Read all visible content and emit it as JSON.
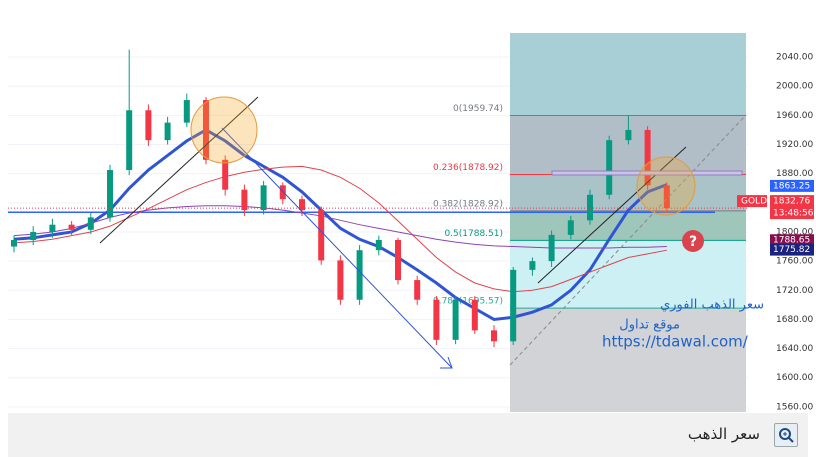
{
  "chart_data": {
    "type": "candlestick",
    "symbol": "GOLD",
    "countdown": "13:48:56",
    "ylim": [
      1553,
      2073
    ],
    "yticks": [
      {
        "value": 1560,
        "label": "1560.00"
      },
      {
        "value": 1600,
        "label": "1600.00"
      },
      {
        "value": 1640,
        "label": "1640.00"
      },
      {
        "value": 1680,
        "label": "1680.00"
      },
      {
        "value": 1720,
        "label": "1720.00"
      },
      {
        "value": 1760,
        "label": "1760.00"
      },
      {
        "value": 1800,
        "label": "1800.00"
      },
      {
        "value": 1840,
        "label": "1840.00"
      },
      {
        "value": 1880,
        "label": "1880.00"
      },
      {
        "value": 1920,
        "label": "1920.00"
      },
      {
        "value": 1960,
        "label": "1960.00"
      },
      {
        "value": 2000,
        "label": "2000.00"
      },
      {
        "value": 2040,
        "label": "2040.00"
      }
    ],
    "grid": true,
    "up_color": "#089981",
    "down_color": "#f23645",
    "open": [
      1780,
      1789,
      1800,
      1810,
      1803,
      1820,
      1885,
      1967,
      1926,
      1950,
      1981,
      1899,
      1858,
      1830,
      1864,
      1845,
      1830,
      1761,
      1707,
      1775,
      1789,
      1734,
      1707,
      1652,
      1707,
      1665,
      1650,
      1748,
      1760,
      1796,
      1816,
      1851,
      1926,
      1940,
      1864
    ],
    "high": [
      1795,
      1808,
      1818,
      1815,
      1826,
      1892,
      2050,
      1975,
      1958,
      1990,
      1985,
      1905,
      1865,
      1870,
      1868,
      1850,
      1835,
      1768,
      1782,
      1795,
      1792,
      1740,
      1712,
      1712,
      1712,
      1672,
      1752,
      1765,
      1802,
      1822,
      1858,
      1932,
      1960,
      1945,
      1868
    ],
    "low": [
      1772,
      1782,
      1792,
      1796,
      1797,
      1814,
      1878,
      1918,
      1920,
      1944,
      1893,
      1850,
      1822,
      1824,
      1838,
      1822,
      1755,
      1700,
      1700,
      1768,
      1728,
      1700,
      1645,
      1646,
      1660,
      1642,
      1645,
      1740,
      1752,
      1790,
      1810,
      1845,
      1920,
      1858,
      1826
    ],
    "close": [
      1789,
      1800,
      1810,
      1803,
      1820,
      1885,
      1967,
      1926,
      1950,
      1981,
      1899,
      1858,
      1830,
      1864,
      1845,
      1830,
      1761,
      1707,
      1775,
      1789,
      1734,
      1707,
      1652,
      1707,
      1665,
      1650,
      1748,
      1760,
      1796,
      1816,
      1851,
      1926,
      1940,
      1864,
      1832.76
    ],
    "moving_averages": [
      {
        "color": "#2f55d4",
        "width": 3,
        "values": [
          1790,
          1792,
          1796,
          1800,
          1812,
          1830,
          1860,
          1885,
          1905,
          1925,
          1940,
          1925,
          1905,
          1890,
          1875,
          1855,
          1830,
          1805,
          1790,
          1780,
          1765,
          1748,
          1730,
          1710,
          1695,
          1680,
          1683,
          1690,
          1700,
          1720,
          1748,
          1790,
          1830,
          1855,
          1865
        ]
      },
      {
        "color": "#e0434f",
        "width": 1,
        "values": [
          1785,
          1787,
          1790,
          1795,
          1800,
          1808,
          1820,
          1832,
          1845,
          1858,
          1868,
          1876,
          1882,
          1886,
          1889,
          1890,
          1885,
          1875,
          1860,
          1840,
          1815,
          1790,
          1765,
          1745,
          1730,
          1722,
          1718,
          1720,
          1725,
          1735,
          1745,
          1755,
          1765,
          1770,
          1775
        ]
      },
      {
        "color": "#8e44ad",
        "width": 1,
        "values": [
          1795,
          1797,
          1800,
          1805,
          1812,
          1820,
          1826,
          1830,
          1833,
          1835,
          1836,
          1836,
          1835,
          1833,
          1830,
          1826,
          1822,
          1816,
          1810,
          1805,
          1800,
          1795,
          1790,
          1786,
          1783,
          1781,
          1780,
          1779,
          1778,
          1778,
          1778,
          1778,
          1779,
          1779,
          1780
        ]
      }
    ],
    "fib_levels": [
      {
        "value": 1959.74,
        "label": "0(1959.74)",
        "color": "#787b86"
      },
      {
        "value": 1878.92,
        "label": "0.236(1878.92)",
        "color": "#f23645"
      },
      {
        "value": 1828.92,
        "label": "0.382(1828.92)",
        "color": "#787b86"
      },
      {
        "value": 1788.51,
        "label": "0.5(1788.51)",
        "color": "#089981"
      },
      {
        "value": 1695.57,
        "label": "0.786(1695.57)",
        "color": "#22ab94"
      }
    ],
    "fib_colors": [
      "#a8cfd6",
      "#b2bec7",
      "#a9c3c8",
      "#9fc6bb",
      "#ccf0f4",
      "#d2d3d6"
    ],
    "support_line": 1827,
    "price_tags": [
      {
        "value": 1863.25,
        "color": "#2962ff"
      },
      {
        "value": 1788.65,
        "color": "#880e4f"
      },
      {
        "value": 1775.82,
        "color": "#1a237e"
      }
    ]
  },
  "watermark": [
    "سعر الذهب الفوري",
    "موقع تداول",
    "https://tdawal.com/"
  ],
  "caption": "سعر الذهب"
}
